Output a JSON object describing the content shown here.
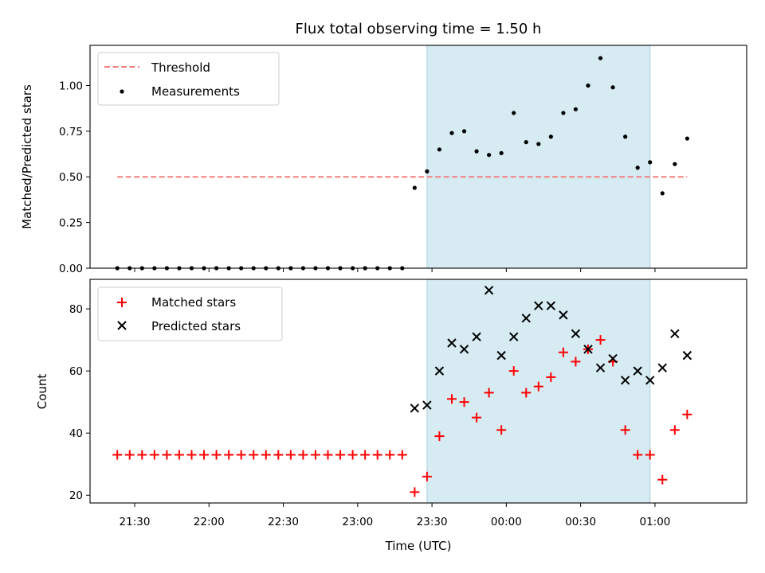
{
  "chart_data": [
    {
      "type": "scatter",
      "title": "Flux total observing time = 1.50 h",
      "xlabel": "",
      "ylabel": "Matched/Predicted stars",
      "ylim": [
        0,
        1.22
      ],
      "yticks": [
        "0.00",
        "0.25",
        "0.50",
        "0.75",
        "1.00"
      ],
      "ytick_values": [
        0,
        0.25,
        0.5,
        0.75,
        1.0
      ],
      "xlim": [
        "21:12",
        "01:37"
      ],
      "grid": false,
      "legend": "top-left",
      "highlight_span": {
        "start": "23:28",
        "end": "00:58",
        "color": "#add8e6"
      },
      "threshold": {
        "name": "Threshold",
        "value": 0.5,
        "x_start": "21:23",
        "x_end": "01:13",
        "color": "#f08080",
        "style": "dashed"
      },
      "series": [
        {
          "name": "Measurements",
          "marker": "dot",
          "color": "#000000",
          "x": [
            "21:23",
            "21:28",
            "21:33",
            "21:38",
            "21:43",
            "21:48",
            "21:53",
            "21:58",
            "22:03",
            "22:08",
            "22:13",
            "22:18",
            "22:23",
            "22:28",
            "22:33",
            "22:38",
            "22:43",
            "22:48",
            "22:53",
            "22:58",
            "23:03",
            "23:08",
            "23:13",
            "23:18",
            "23:23",
            "23:28",
            "23:33",
            "23:38",
            "23:43",
            "23:48",
            "23:53",
            "23:58",
            "00:03",
            "00:08",
            "00:13",
            "00:18",
            "00:23",
            "00:28",
            "00:33",
            "00:38",
            "00:43",
            "00:48",
            "00:53",
            "00:58",
            "01:03",
            "01:08",
            "01:13"
          ],
          "y": [
            0,
            0,
            0,
            0,
            0,
            0,
            0,
            0,
            0,
            0,
            0,
            0,
            0,
            0,
            0,
            0,
            0,
            0,
            0,
            0,
            0,
            0,
            0,
            0,
            0.44,
            0.53,
            0.65,
            0.74,
            0.75,
            0.64,
            0.62,
            0.63,
            0.85,
            0.69,
            0.68,
            0.72,
            0.85,
            0.87,
            1.0,
            1.15,
            0.99,
            0.72,
            0.55,
            0.58,
            0.41,
            0.57,
            0.71
          ]
        }
      ]
    },
    {
      "type": "scatter",
      "title": "",
      "xlabel": "Time (UTC)",
      "ylabel": "Count",
      "ylim": [
        17.5,
        89.5
      ],
      "yticks": [
        "20",
        "40",
        "60",
        "80"
      ],
      "ytick_values": [
        20,
        40,
        60,
        80
      ],
      "xlim": [
        "21:12",
        "01:37"
      ],
      "xticks": [
        "21:30",
        "22:00",
        "22:30",
        "23:00",
        "23:30",
        "00:00",
        "00:30",
        "01:00"
      ],
      "grid": false,
      "legend": "top-left",
      "highlight_span": {
        "start": "23:28",
        "end": "00:58",
        "color": "#add8e6"
      },
      "series": [
        {
          "name": "Matched stars",
          "marker": "plus",
          "color": "#ff0000",
          "x": [
            "21:23",
            "21:28",
            "21:33",
            "21:38",
            "21:43",
            "21:48",
            "21:53",
            "21:58",
            "22:03",
            "22:08",
            "22:13",
            "22:18",
            "22:23",
            "22:28",
            "22:33",
            "22:38",
            "22:43",
            "22:48",
            "22:53",
            "22:58",
            "23:03",
            "23:08",
            "23:13",
            "23:18",
            "23:23",
            "23:28",
            "23:33",
            "23:38",
            "23:43",
            "23:48",
            "23:53",
            "23:58",
            "00:03",
            "00:08",
            "00:13",
            "00:18",
            "00:23",
            "00:28",
            "00:33",
            "00:38",
            "00:43",
            "00:48",
            "00:53",
            "00:58",
            "01:03",
            "01:08",
            "01:13"
          ],
          "y": [
            33,
            33,
            33,
            33,
            33,
            33,
            33,
            33,
            33,
            33,
            33,
            33,
            33,
            33,
            33,
            33,
            33,
            33,
            33,
            33,
            33,
            33,
            33,
            33,
            21,
            26,
            39,
            51,
            50,
            45,
            53,
            41,
            60,
            53,
            55,
            58,
            66,
            63,
            67,
            70,
            63,
            41,
            33,
            33,
            25,
            41,
            46
          ]
        },
        {
          "name": "Predicted stars",
          "marker": "x",
          "color": "#000000",
          "x": [
            "23:23",
            "23:28",
            "23:33",
            "23:38",
            "23:43",
            "23:48",
            "23:53",
            "23:58",
            "00:03",
            "00:08",
            "00:13",
            "00:18",
            "00:23",
            "00:28",
            "00:33",
            "00:38",
            "00:43",
            "00:48",
            "00:53",
            "00:58",
            "01:03",
            "01:08",
            "01:13"
          ],
          "y": [
            48,
            49,
            60,
            69,
            67,
            71,
            86,
            65,
            71,
            77,
            81,
            81,
            78,
            72,
            67,
            61,
            64,
            57,
            60,
            57,
            61,
            72,
            65
          ]
        }
      ]
    }
  ]
}
